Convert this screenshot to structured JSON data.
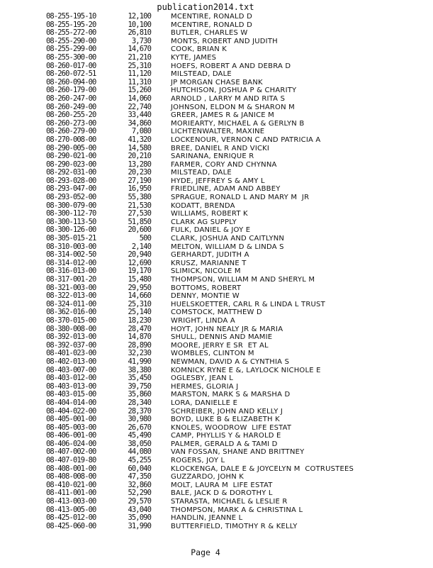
{
  "document": {
    "title": "publication2014.txt",
    "footer": "Page 4",
    "rows": [
      {
        "parcel": "08-255-195-10",
        "value": "12,100",
        "name": "MCENTIRE, RONALD D"
      },
      {
        "parcel": "08-255-195-20",
        "value": "10,100",
        "name": "MCENTIRE, RONALD D"
      },
      {
        "parcel": "08-255-272-00",
        "value": "26,810",
        "name": "BUTLER, CHARLES W"
      },
      {
        "parcel": "08-255-290-00",
        "value": "3,730",
        "name": "MONTS, ROBERT AND JUDITH"
      },
      {
        "parcel": "08-255-299-00",
        "value": "14,670",
        "name": "COOK, BRIAN K"
      },
      {
        "parcel": "08-255-300-00",
        "value": "21,210",
        "name": "KYTE, JAMES"
      },
      {
        "parcel": "08-260-017-00",
        "value": "25,310",
        "name": "HOEFS, ROBERT A AND DEBRA D"
      },
      {
        "parcel": "08-260-072-51",
        "value": "11,120",
        "name": "MILSTEAD, DALE"
      },
      {
        "parcel": "08-260-094-00",
        "value": "11,310",
        "name": "JP MORGAN CHASE BANK"
      },
      {
        "parcel": "08-260-179-00",
        "value": "15,260",
        "name": "HUTCHISON, JOSHUA P & CHARITY"
      },
      {
        "parcel": "08-260-247-00",
        "value": "14,060",
        "name": "ARNOLD , LARRY M AND RITA S"
      },
      {
        "parcel": "08-260-249-00",
        "value": "22,740",
        "name": "JOHNSON, ELDON M & SHARON M"
      },
      {
        "parcel": "08-260-255-20",
        "value": "33,440",
        "name": "GREER, JAMES R & JANICE M"
      },
      {
        "parcel": "08-260-273-00",
        "value": "34,860",
        "name": "MORIEARTY, MICHAEL A & GERLYN B"
      },
      {
        "parcel": "08-260-279-00",
        "value": "7,080",
        "name": "LICHTENWALTER, MAXINE"
      },
      {
        "parcel": "08-270-008-00",
        "value": "41,320",
        "name": "LOCKENOUR, VERNON C AND PATRICIA A"
      },
      {
        "parcel": "08-290-005-00",
        "value": "14,580",
        "name": "BREE, DANIEL R AND VICKI"
      },
      {
        "parcel": "08-290-021-00",
        "value": "20,210",
        "name": "SARINANA, ENRIQUE R"
      },
      {
        "parcel": "08-290-023-00",
        "value": "13,280",
        "name": "FARMER, CORY AND CHYNNA"
      },
      {
        "parcel": "08-292-031-00",
        "value": "20,230",
        "name": "MILSTEAD, DALE"
      },
      {
        "parcel": "08-293-028-00",
        "value": "27,190",
        "name": "HYDE, JEFFREY S & AMY L"
      },
      {
        "parcel": "08-293-047-00",
        "value": "16,950",
        "name": "FRIEDLINE, ADAM AND ABBEY"
      },
      {
        "parcel": "08-293-052-00",
        "value": "55,380",
        "name": "SPRAGUE, RONALD L AND MARY M  JR"
      },
      {
        "parcel": "08-300-079-00",
        "value": "21,530",
        "name": "KODATT, BRENDA"
      },
      {
        "parcel": "08-300-112-70",
        "value": "27,530",
        "name": "WILLIAMS, ROBERT K"
      },
      {
        "parcel": "08-300-113-50",
        "value": "51,850",
        "name": "CLARK AG SUPPLY"
      },
      {
        "parcel": "08-300-126-00",
        "value": "20,600",
        "name": "FULK, DANIEL & JOY E"
      },
      {
        "parcel": "08-305-015-21",
        "value": "500",
        "name": "CLARK, JOSHUA AND CAITLYNN"
      },
      {
        "parcel": "08-310-003-00",
        "value": "2,140",
        "name": "MELTON, WILLIAM D & LINDA S"
      },
      {
        "parcel": "08-314-002-50",
        "value": "20,940",
        "name": "GERHARDT, JUDITH A"
      },
      {
        "parcel": "08-314-012-00",
        "value": "12,690",
        "name": "KRUSZ, MARIANNE T"
      },
      {
        "parcel": "08-316-013-00",
        "value": "19,170",
        "name": "SLIMICK, NICOLE M"
      },
      {
        "parcel": "08-317-001-20",
        "value": "15,480",
        "name": "THOMPSON, WILLIAM M AND SHERYL M"
      },
      {
        "parcel": "08-321-003-00",
        "value": "29,950",
        "name": "BOTTOMS, ROBERT"
      },
      {
        "parcel": "08-322-013-00",
        "value": "14,660",
        "name": "DENNY, MONTIE W"
      },
      {
        "parcel": "08-324-011-00",
        "value": "25,310",
        "name": "HUELSKOETTER, CARL R & LINDA L TRUST"
      },
      {
        "parcel": "08-362-016-00",
        "value": "25,140",
        "name": "COMSTOCK, MATTHEW D"
      },
      {
        "parcel": "08-370-015-00",
        "value": "18,230",
        "name": "WRIGHT, LINDA A"
      },
      {
        "parcel": "08-380-008-00",
        "value": "28,470",
        "name": "HOYT, JOHN NEALY JR & MARIA"
      },
      {
        "parcel": "08-392-013-00",
        "value": "14,870",
        "name": "SHULL, DENNIS AND MAMIE"
      },
      {
        "parcel": "08-392-037-00",
        "value": "28,890",
        "name": "MOORE, JERRY E SR  ET AL"
      },
      {
        "parcel": "08-401-023-00",
        "value": "32,230",
        "name": "WOMBLES, CLINTON M"
      },
      {
        "parcel": "08-402-013-00",
        "value": "41,990",
        "name": "NEWMAN, DAVID A & CYNTHIA S"
      },
      {
        "parcel": "08-403-007-00",
        "value": "38,380",
        "name": "KOMNICK RYNE E &, LAYLOCK NICHOLE E"
      },
      {
        "parcel": "08-403-012-00",
        "value": "35,450",
        "name": "OGLESBY, JEAN L"
      },
      {
        "parcel": "08-403-013-00",
        "value": "39,750",
        "name": "HERMES, GLORIA J"
      },
      {
        "parcel": "08-403-015-00",
        "value": "35,860",
        "name": "MARSTON, MARK S & MARSHA D"
      },
      {
        "parcel": "08-404-014-00",
        "value": "28,340",
        "name": "LORA, DANIELLE E"
      },
      {
        "parcel": "08-404-022-00",
        "value": "28,370",
        "name": "SCHREIBER, JOHN AND KELLY J"
      },
      {
        "parcel": "08-405-001-00",
        "value": "30,980",
        "name": "BOYD, LUKE B & ELIZABETH K"
      },
      {
        "parcel": "08-405-003-00",
        "value": "26,670",
        "name": "KNOLES, WOODROW  LIFE ESTAT"
      },
      {
        "parcel": "08-406-001-00",
        "value": "45,490",
        "name": "CAMP, PHYLLIS Y & HAROLD E"
      },
      {
        "parcel": "08-406-024-00",
        "value": "38,050",
        "name": "PALMER, GERALD A & TAMI D"
      },
      {
        "parcel": "08-407-002-00",
        "value": "44,080",
        "name": "VAN FOSSAN, SHANE AND BRITTNEY"
      },
      {
        "parcel": "08-407-019-80",
        "value": "45,255",
        "name": "ROGERS, JOY L"
      },
      {
        "parcel": "08-408-001-00",
        "value": "60,040",
        "name": "KLOCKENGA, DALE E & JOYCELYN M  COTRUSTEES"
      },
      {
        "parcel": "08-408-008-00",
        "value": "47,350",
        "name": "GUZZARDO, JOHN K"
      },
      {
        "parcel": "08-410-021-00",
        "value": "32,860",
        "name": "MOLT, LAURA M  LIFE ESTAT"
      },
      {
        "parcel": "08-411-001-00",
        "value": "52,290",
        "name": "BALE, JACK D & DOROTHY L"
      },
      {
        "parcel": "08-413-003-00",
        "value": "29,570",
        "name": "STARASTA, MICHAEL & LESLIE R"
      },
      {
        "parcel": "08-413-005-00",
        "value": "43,040",
        "name": "THOMPSON, MARK A & CHRISTINA L"
      },
      {
        "parcel": "08-425-012-00",
        "value": "35,090",
        "name": "HANDLIN, JEANNE L"
      },
      {
        "parcel": "08-425-060-00",
        "value": "31,990",
        "name": "BUTTERFIELD, TIMOTHY R & KELLY"
      }
    ]
  }
}
